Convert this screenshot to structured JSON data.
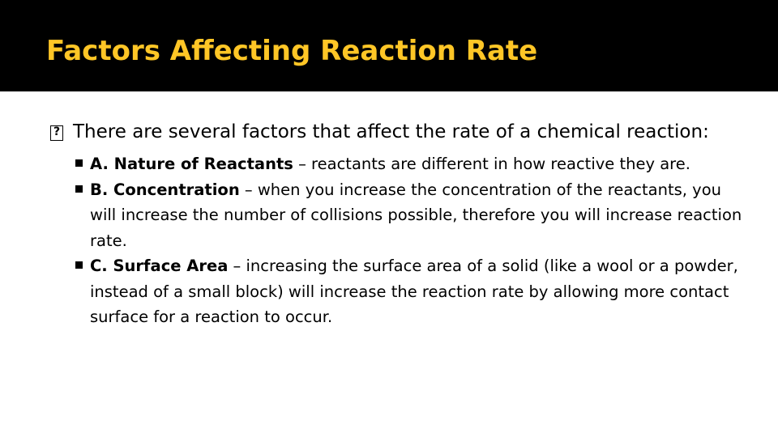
{
  "slide": {
    "title": "Factors Affecting Reaction Rate",
    "title_color": "#FFC626",
    "header_background": "#000000",
    "main_bullet_icon": "missing-glyph-icon",
    "main_bullet": "There are several factors that affect the rate of a chemical reaction:",
    "sub_bullet_icon": "square-bullet-icon",
    "items": [
      {
        "term": "A. Nature of Reactants",
        "text": " – reactants are different in how reactive they are."
      },
      {
        "term": "B. Concentration",
        "text": " – when you increase the concentration of the reactants, you will increase the number of collisions possible, therefore you will increase reaction rate."
      },
      {
        "term": "C. Surface Area",
        "text": " – increasing the surface area of a solid (like a wool or a powder, instead of a small block) will increase the reaction rate by allowing more contact surface for a reaction to occur."
      }
    ]
  }
}
